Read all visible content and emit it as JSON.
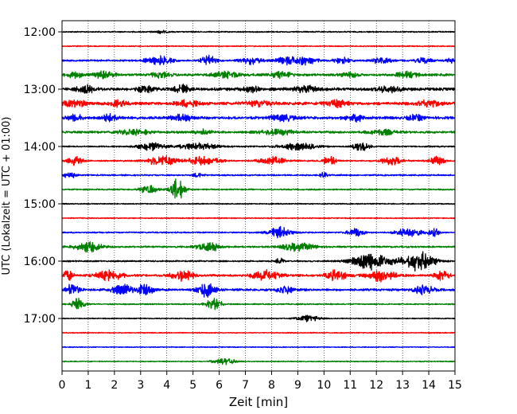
{
  "chart_data": {
    "type": "line",
    "title": "",
    "xlabel": "Zeit  [min]",
    "ylabel": "UTC (Lokalzeit = UTC + 01:00)",
    "xlim": [
      0,
      15
    ],
    "x_ticks": [
      "0",
      "1",
      "2",
      "3",
      "4",
      "5",
      "6",
      "7",
      "8",
      "9",
      "10",
      "11",
      "12",
      "13",
      "14",
      "15"
    ],
    "y_ticks": [
      "12:00",
      "13:00",
      "14:00",
      "15:00",
      "16:00",
      "17:00"
    ],
    "row_interval_min": 15,
    "start_time": "12:00",
    "grid": "vertical-dotted",
    "colors": [
      "#000000",
      "#ff0000",
      "#0000ff",
      "#008000"
    ],
    "rows": [
      {
        "time": "12:00",
        "color": "#000000",
        "amp": 0.25,
        "bursts": [
          [
            3.8,
            0.6,
            0.5
          ]
        ]
      },
      {
        "time": "12:15",
        "color": "#ff0000",
        "amp": 0.22,
        "bursts": []
      },
      {
        "time": "12:30",
        "color": "#0000ff",
        "amp": 0.35,
        "bursts": [
          [
            3.7,
            1.0,
            1.6
          ],
          [
            5.6,
            0.6,
            1.8
          ],
          [
            7.2,
            0.8,
            1.4
          ],
          [
            8.6,
            0.8,
            1.4
          ],
          [
            9.3,
            0.8,
            1.6
          ],
          [
            10.7,
            0.6,
            1.3
          ],
          [
            12.2,
            0.7,
            1.3
          ],
          [
            13.8,
            0.6,
            1.2
          ],
          [
            14.8,
            0.3,
            1.0
          ]
        ]
      },
      {
        "time": "12:45",
        "color": "#008000",
        "amp": 0.5,
        "bursts": [
          [
            0.5,
            0.6,
            1.3
          ],
          [
            1.6,
            0.8,
            1.3
          ],
          [
            3.8,
            0.7,
            1.0
          ],
          [
            6.3,
            1.0,
            1.2
          ],
          [
            8.4,
            0.8,
            1.2
          ],
          [
            11.0,
            0.6,
            1.1
          ],
          [
            13.2,
            0.8,
            1.2
          ]
        ]
      },
      {
        "time": "13:00",
        "color": "#000000",
        "amp": 0.6,
        "bursts": [
          [
            0.9,
            0.7,
            1.3
          ],
          [
            3.2,
            0.6,
            1.2
          ],
          [
            4.6,
            0.6,
            1.4
          ],
          [
            7.2,
            0.6,
            1.2
          ],
          [
            9.3,
            0.8,
            1.3
          ],
          [
            12.5,
            0.8,
            1.3
          ]
        ]
      },
      {
        "time": "13:15",
        "color": "#ff0000",
        "amp": 0.6,
        "bursts": [
          [
            0.5,
            0.8,
            1.4
          ],
          [
            2.2,
            0.6,
            1.2
          ],
          [
            4.8,
            0.8,
            1.3
          ],
          [
            7.5,
            1.0,
            1.2
          ],
          [
            10.5,
            1.0,
            1.2
          ],
          [
            14.0,
            0.8,
            1.3
          ]
        ]
      },
      {
        "time": "13:30",
        "color": "#0000ff",
        "amp": 0.55,
        "bursts": [
          [
            0.5,
            0.5,
            1.4
          ],
          [
            1.8,
            0.6,
            1.2
          ],
          [
            4.6,
            0.8,
            1.2
          ],
          [
            8.4,
            1.0,
            1.2
          ],
          [
            11.2,
            0.8,
            1.2
          ],
          [
            13.5,
            0.6,
            1.1
          ]
        ]
      },
      {
        "time": "13:45",
        "color": "#008000",
        "amp": 0.45,
        "bursts": [
          [
            2.8,
            1.2,
            1.2
          ],
          [
            5.4,
            0.6,
            1.0
          ],
          [
            8.2,
            1.2,
            1.1
          ],
          [
            12.2,
            1.0,
            1.0
          ]
        ]
      },
      {
        "time": "14:00",
        "color": "#000000",
        "amp": 0.28,
        "bursts": [
          [
            3.4,
            1.0,
            1.6
          ],
          [
            5.2,
            1.5,
            1.3
          ],
          [
            9.0,
            1.4,
            1.3
          ],
          [
            11.4,
            0.6,
            2.0
          ]
        ]
      },
      {
        "time": "14:15",
        "color": "#ff0000",
        "amp": 0.3,
        "bursts": [
          [
            0.5,
            0.5,
            1.8
          ],
          [
            3.8,
            1.0,
            2.2
          ],
          [
            5.4,
            1.2,
            1.6
          ],
          [
            8.0,
            1.0,
            1.6
          ],
          [
            10.2,
            0.5,
            2.0
          ],
          [
            12.6,
            0.8,
            1.6
          ],
          [
            14.3,
            0.6,
            1.6
          ]
        ]
      },
      {
        "time": "14:30",
        "color": "#0000ff",
        "amp": 0.3,
        "bursts": [
          [
            0.3,
            0.4,
            1.6
          ],
          [
            5.2,
            0.4,
            0.8
          ],
          [
            10.0,
            0.3,
            1.2
          ]
        ]
      },
      {
        "time": "14:45",
        "color": "#008000",
        "amp": 0.28,
        "bursts": [
          [
            3.3,
            0.6,
            1.8
          ],
          [
            4.4,
            0.5,
            4.5
          ]
        ]
      },
      {
        "time": "15:00",
        "color": "#000000",
        "amp": 0.22,
        "bursts": []
      },
      {
        "time": "15:15",
        "color": "#ff0000",
        "amp": 0.22,
        "bursts": []
      },
      {
        "time": "15:30",
        "color": "#0000ff",
        "amp": 0.28,
        "bursts": [
          [
            8.3,
            0.8,
            2.2
          ],
          [
            11.2,
            0.6,
            1.6
          ],
          [
            13.2,
            0.9,
            2.2
          ],
          [
            14.2,
            0.4,
            1.6
          ]
        ]
      },
      {
        "time": "15:45",
        "color": "#008000",
        "amp": 0.35,
        "bursts": [
          [
            1.0,
            1.0,
            2.0
          ],
          [
            5.6,
            0.9,
            1.8
          ],
          [
            9.0,
            1.2,
            1.6
          ]
        ]
      },
      {
        "time": "16:00",
        "color": "#000000",
        "amp": 0.3,
        "bursts": [
          [
            8.3,
            0.3,
            1.2
          ],
          [
            11.8,
            1.4,
            3.5
          ],
          [
            13.6,
            1.2,
            3.8
          ]
        ]
      },
      {
        "time": "16:15",
        "color": "#ff0000",
        "amp": 0.45,
        "bursts": [
          [
            0.2,
            0.4,
            2.0
          ],
          [
            1.8,
            1.0,
            2.0
          ],
          [
            4.6,
            0.8,
            2.2
          ],
          [
            7.8,
            1.0,
            2.0
          ],
          [
            10.5,
            0.8,
            2.0
          ],
          [
            12.2,
            1.0,
            2.2
          ],
          [
            14.5,
            0.5,
            2.0
          ]
        ]
      },
      {
        "time": "16:30",
        "color": "#0000ff",
        "amp": 0.45,
        "bursts": [
          [
            0.4,
            0.5,
            2.4
          ],
          [
            2.3,
            0.8,
            2.0
          ],
          [
            3.2,
            0.6,
            2.4
          ],
          [
            5.5,
            0.7,
            2.6
          ],
          [
            8.5,
            0.6,
            1.8
          ],
          [
            13.8,
            0.7,
            1.8
          ]
        ]
      },
      {
        "time": "16:45",
        "color": "#008000",
        "amp": 0.25,
        "bursts": [
          [
            0.6,
            0.5,
            2.5
          ],
          [
            5.8,
            0.6,
            2.2
          ]
        ]
      },
      {
        "time": "17:00",
        "color": "#000000",
        "amp": 0.2,
        "bursts": [
          [
            9.4,
            0.8,
            1.2
          ]
        ]
      },
      {
        "time": "17:15",
        "color": "#ff0000",
        "amp": 0.2,
        "bursts": []
      },
      {
        "time": "17:30",
        "color": "#0000ff",
        "amp": 0.18,
        "bursts": []
      },
      {
        "time": "17:45",
        "color": "#008000",
        "amp": 0.2,
        "bursts": [
          [
            6.2,
            0.8,
            1.3
          ]
        ]
      }
    ]
  }
}
